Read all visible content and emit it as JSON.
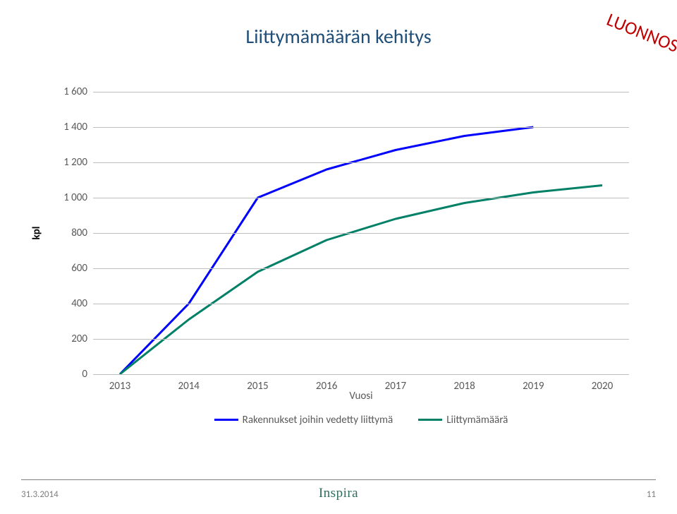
{
  "title": {
    "text": "Liittymämäärän kehitys",
    "fontsize": 28,
    "color": "#1f4e79"
  },
  "watermark": {
    "text": "LUONNOS",
    "fontsize": 26,
    "color": "#c00000"
  },
  "chart": {
    "type": "line",
    "ylabel": "kpl",
    "xlabel": "Vuosi",
    "label_fontsize": 15,
    "tick_fontsize": 15,
    "tick_color": "#595959",
    "ylim": [
      0,
      1600
    ],
    "ytick_step": 200,
    "yticks": [
      "0",
      "200",
      "400",
      "600",
      "800",
      "1 000",
      "1 200",
      "1 400",
      "1 600"
    ],
    "categories": [
      "2013",
      "2014",
      "2015",
      "2016",
      "2017",
      "2018",
      "2019",
      "2020"
    ],
    "grid_color": "#bfbfbf",
    "background_color": "#ffffff",
    "series": [
      {
        "name": "Rakennukset joihin vedetty liittymä",
        "color": "#0000ff",
        "line_width": 3,
        "values": [
          0,
          400,
          1000,
          1160,
          1270,
          1350,
          1400
        ]
      },
      {
        "name": "Liittymämäärä",
        "color": "#008066",
        "line_width": 3,
        "values": [
          0,
          310,
          580,
          760,
          880,
          970,
          1030,
          1070
        ]
      }
    ]
  },
  "footer": {
    "date": "31.3.2014",
    "logo": "Inspira",
    "page": "11",
    "fontsize": 13,
    "color": "#7f7f7f",
    "logo_color": "#2f6e5e"
  }
}
